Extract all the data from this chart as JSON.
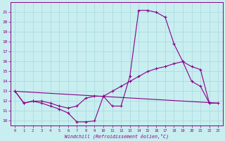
{
  "bg_color": "#c8eef0",
  "line_color": "#880088",
  "grid_color": "#a8d8dc",
  "xlabel": "Windchill (Refroidissement éolien,°C)",
  "ylim": [
    9.5,
    22.0
  ],
  "xlim": [
    -0.5,
    23.5
  ],
  "curve1_x": [
    0,
    1,
    2,
    3,
    4,
    5,
    6,
    7,
    8,
    9,
    10,
    11,
    12,
    13,
    14,
    15,
    16,
    17,
    18,
    19,
    20,
    21,
    22
  ],
  "curve1_y": [
    13.0,
    11.8,
    12.0,
    11.8,
    11.5,
    11.2,
    10.8,
    9.9,
    9.9,
    10.0,
    12.5,
    11.5,
    11.5,
    14.5,
    21.2,
    21.2,
    21.0,
    20.5,
    17.8,
    16.0,
    14.0,
    13.5,
    11.8
  ],
  "curve2_x": [
    0,
    1,
    2,
    3,
    4,
    5,
    6,
    7,
    8,
    9,
    10,
    11,
    12,
    13,
    14,
    15,
    16,
    17,
    18,
    19,
    20,
    21,
    22,
    23
  ],
  "curve2_y": [
    13.0,
    11.8,
    12.0,
    12.0,
    11.8,
    11.5,
    11.3,
    11.5,
    12.3,
    12.5,
    12.5,
    13.0,
    13.5,
    14.0,
    14.5,
    15.0,
    15.3,
    15.5,
    15.8,
    16.0,
    15.5,
    15.2,
    11.8,
    11.8
  ],
  "line3_x": [
    0,
    23
  ],
  "line3_y": [
    13.0,
    11.8
  ]
}
